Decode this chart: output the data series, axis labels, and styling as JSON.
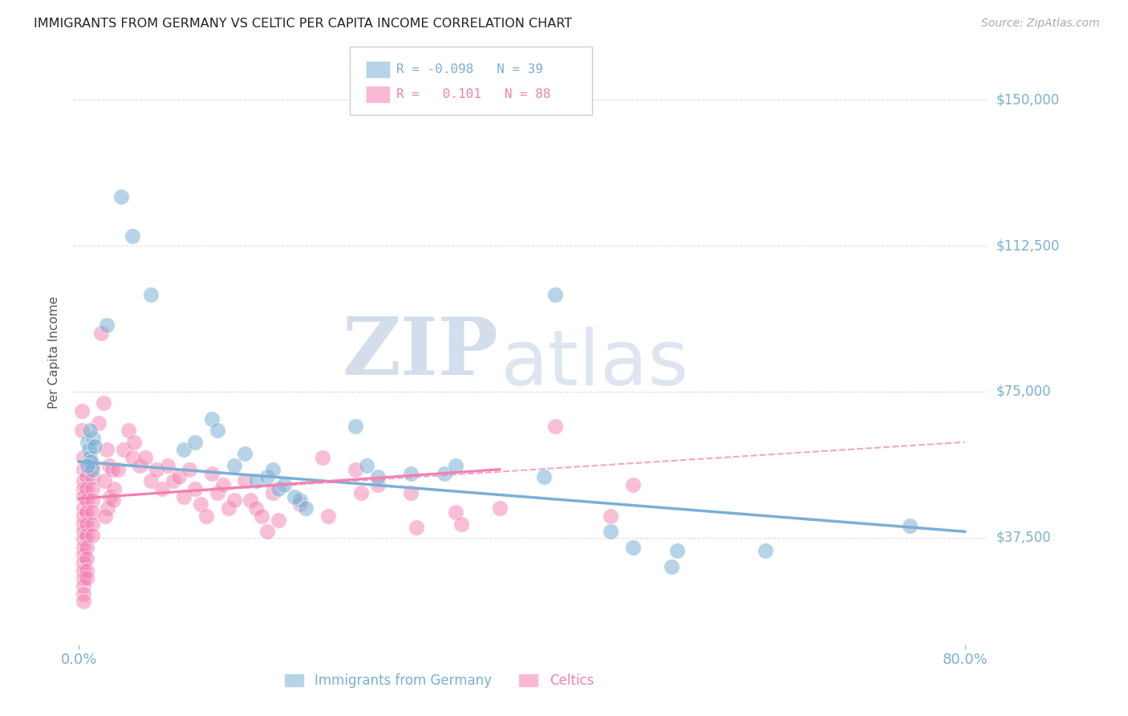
{
  "title": "IMMIGRANTS FROM GERMANY VS CELTIC PER CAPITA INCOME CORRELATION CHART",
  "source": "Source: ZipAtlas.com",
  "ylabel": "Per Capita Income",
  "y_tick_labels": [
    "$37,500",
    "$75,000",
    "$112,500",
    "$150,000"
  ],
  "y_tick_values": [
    37500,
    75000,
    112500,
    150000
  ],
  "y_min": 10000,
  "y_max": 160000,
  "x_min": -0.005,
  "x_max": 0.82,
  "blue_color": "#7bafd4",
  "pink_color": "#f47eb0",
  "blue_scatter": [
    [
      0.008,
      62000
    ],
    [
      0.009,
      60000
    ],
    [
      0.01,
      58000
    ],
    [
      0.011,
      57000
    ],
    [
      0.012,
      55000
    ],
    [
      0.013,
      63000
    ],
    [
      0.014,
      61000
    ],
    [
      0.01,
      65000
    ],
    [
      0.008,
      56000
    ],
    [
      0.038,
      125000
    ],
    [
      0.048,
      115000
    ],
    [
      0.065,
      100000
    ],
    [
      0.025,
      92000
    ],
    [
      0.12,
      68000
    ],
    [
      0.125,
      65000
    ],
    [
      0.095,
      60000
    ],
    [
      0.105,
      62000
    ],
    [
      0.14,
      56000
    ],
    [
      0.15,
      59000
    ],
    [
      0.16,
      52000
    ],
    [
      0.17,
      53000
    ],
    [
      0.175,
      55000
    ],
    [
      0.18,
      50000
    ],
    [
      0.185,
      51000
    ],
    [
      0.2,
      47000
    ],
    [
      0.205,
      45000
    ],
    [
      0.195,
      48000
    ],
    [
      0.25,
      66000
    ],
    [
      0.26,
      56000
    ],
    [
      0.27,
      53000
    ],
    [
      0.3,
      54000
    ],
    [
      0.33,
      54000
    ],
    [
      0.34,
      56000
    ],
    [
      0.43,
      100000
    ],
    [
      0.42,
      53000
    ],
    [
      0.5,
      35000
    ],
    [
      0.48,
      39000
    ],
    [
      0.54,
      34000
    ],
    [
      0.62,
      34000
    ],
    [
      0.75,
      40500
    ],
    [
      0.535,
      30000
    ]
  ],
  "pink_scatter": [
    [
      0.003,
      70000
    ],
    [
      0.003,
      65000
    ],
    [
      0.004,
      58000
    ],
    [
      0.004,
      55000
    ],
    [
      0.004,
      52000
    ],
    [
      0.004,
      50000
    ],
    [
      0.004,
      48000
    ],
    [
      0.004,
      45000
    ],
    [
      0.004,
      43000
    ],
    [
      0.004,
      41000
    ],
    [
      0.004,
      39000
    ],
    [
      0.004,
      37000
    ],
    [
      0.004,
      35000
    ],
    [
      0.004,
      33000
    ],
    [
      0.004,
      31000
    ],
    [
      0.004,
      29000
    ],
    [
      0.004,
      27000
    ],
    [
      0.004,
      25000
    ],
    [
      0.004,
      23000
    ],
    [
      0.004,
      21000
    ],
    [
      0.007,
      53000
    ],
    [
      0.007,
      50000
    ],
    [
      0.007,
      47000
    ],
    [
      0.007,
      44000
    ],
    [
      0.007,
      41000
    ],
    [
      0.007,
      38000
    ],
    [
      0.007,
      35000
    ],
    [
      0.007,
      32000
    ],
    [
      0.007,
      29000
    ],
    [
      0.007,
      27000
    ],
    [
      0.012,
      56000
    ],
    [
      0.012,
      53000
    ],
    [
      0.012,
      50000
    ],
    [
      0.012,
      47000
    ],
    [
      0.012,
      44000
    ],
    [
      0.012,
      41000
    ],
    [
      0.012,
      38000
    ],
    [
      0.02,
      90000
    ],
    [
      0.022,
      72000
    ],
    [
      0.018,
      67000
    ],
    [
      0.025,
      60000
    ],
    [
      0.027,
      56000
    ],
    [
      0.023,
      52000
    ],
    [
      0.028,
      48000
    ],
    [
      0.026,
      45000
    ],
    [
      0.024,
      43000
    ],
    [
      0.03,
      55000
    ],
    [
      0.032,
      50000
    ],
    [
      0.031,
      47000
    ],
    [
      0.035,
      55000
    ],
    [
      0.04,
      60000
    ],
    [
      0.045,
      65000
    ],
    [
      0.048,
      58000
    ],
    [
      0.05,
      62000
    ],
    [
      0.055,
      56000
    ],
    [
      0.06,
      58000
    ],
    [
      0.065,
      52000
    ],
    [
      0.07,
      55000
    ],
    [
      0.075,
      50000
    ],
    [
      0.08,
      56000
    ],
    [
      0.085,
      52000
    ],
    [
      0.09,
      53000
    ],
    [
      0.095,
      48000
    ],
    [
      0.1,
      55000
    ],
    [
      0.105,
      50000
    ],
    [
      0.11,
      46000
    ],
    [
      0.115,
      43000
    ],
    [
      0.12,
      54000
    ],
    [
      0.125,
      49000
    ],
    [
      0.13,
      51000
    ],
    [
      0.135,
      45000
    ],
    [
      0.14,
      47000
    ],
    [
      0.15,
      52000
    ],
    [
      0.155,
      47000
    ],
    [
      0.16,
      45000
    ],
    [
      0.165,
      43000
    ],
    [
      0.17,
      39000
    ],
    [
      0.175,
      49000
    ],
    [
      0.18,
      42000
    ],
    [
      0.2,
      46000
    ],
    [
      0.22,
      58000
    ],
    [
      0.225,
      43000
    ],
    [
      0.25,
      55000
    ],
    [
      0.255,
      49000
    ],
    [
      0.27,
      51000
    ],
    [
      0.3,
      49000
    ],
    [
      0.305,
      40000
    ],
    [
      0.34,
      44000
    ],
    [
      0.345,
      41000
    ],
    [
      0.38,
      45000
    ],
    [
      0.43,
      66000
    ],
    [
      0.48,
      43000
    ],
    [
      0.5,
      51000
    ]
  ],
  "blue_line": {
    "x": [
      0.0,
      0.8
    ],
    "y": [
      57000,
      39000
    ]
  },
  "pink_line_solid": {
    "x": [
      0.0,
      0.38
    ],
    "y": [
      47500,
      55000
    ]
  },
  "pink_line_dashed": {
    "x": [
      0.0,
      0.8
    ],
    "y": [
      47500,
      62000
    ]
  },
  "background_color": "#ffffff",
  "grid_color": "#dddddd"
}
